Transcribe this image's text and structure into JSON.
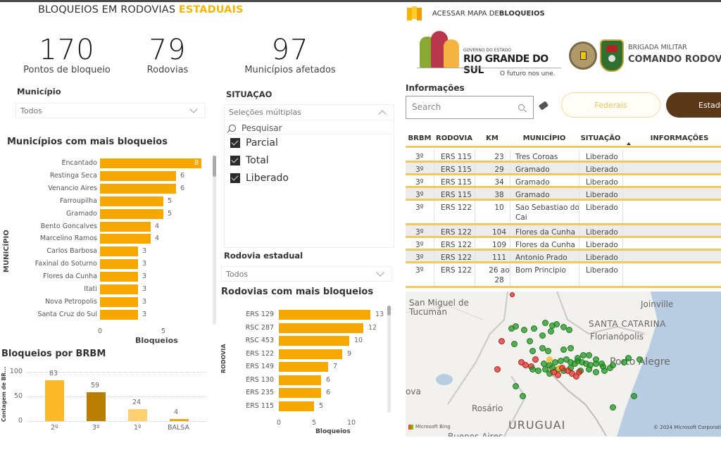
{
  "header": {
    "title_prefix": "BLOQUEIOS EM RODOVIAS ",
    "title_highlight": "ESTADUAIS"
  },
  "kpis": [
    {
      "value": "170",
      "label": "Pontos de bloqueio"
    },
    {
      "value": "79",
      "label": "Rodovias"
    },
    {
      "value": "97",
      "label": "Municípios afetados"
    }
  ],
  "filters": {
    "municipio": {
      "title": "Município",
      "value": "Todos"
    },
    "situacao": {
      "title": "SITUAÇAO",
      "value": "Seleções múltiplas",
      "search_placeholder": "Pesquisar",
      "options": [
        {
          "label": "Parcial",
          "checked": true
        },
        {
          "label": "Total",
          "checked": true
        },
        {
          "label": "Liberado",
          "checked": true
        }
      ]
    },
    "rodovia": {
      "title": "Rodovia estadual",
      "value": "Todos"
    }
  },
  "chart_data": [
    {
      "type": "bar",
      "orientation": "horizontal",
      "title": "Municípios com mais bloqueios",
      "ylabel": "MUNICÍPIO",
      "xlabel": "Bloqueios",
      "categories": [
        "Encantado",
        "Restinga Seca",
        "Venancio Aires",
        "Farroupilha",
        "Gramado",
        "Bento Goncalves",
        "Marcelino Ramos",
        "Carlos Barbosa",
        "Faxinal do Soturno",
        "Flores da Cunha",
        "Itati",
        "Nova Petropolis",
        "Santa Cruz do Sul"
      ],
      "values": [
        8,
        6,
        6,
        5,
        5,
        4,
        4,
        3,
        3,
        3,
        3,
        3,
        3
      ],
      "xticks": [
        "0",
        "5"
      ],
      "xlim": [
        0,
        8
      ],
      "color": "#f7a800"
    },
    {
      "type": "bar",
      "orientation": "vertical",
      "title": "Bloqueios por BRBM",
      "ylabel": "Contagem de BR...",
      "xlabel": "",
      "categories": [
        "2º",
        "3º",
        "1º",
        "BALSA"
      ],
      "values": [
        83,
        59,
        24,
        4
      ],
      "colors": [
        "#fbb827",
        "#b97f05",
        "#fcd070",
        "#e8a810"
      ],
      "yticks": [
        "0",
        "50",
        "100"
      ],
      "ylim": [
        0,
        100
      ],
      "grid": true
    },
    {
      "type": "bar",
      "orientation": "horizontal",
      "title": "Rodovias com mais bloqueios",
      "ylabel": "RODOVIA",
      "xlabel": "Bloqueios",
      "categories": [
        "ERS 129",
        "RSC 287",
        "RSC 453",
        "ERS 122",
        "ERS 149",
        "ERS 130",
        "ERS 235",
        "ERS 115"
      ],
      "values": [
        13,
        12,
        10,
        9,
        7,
        6,
        6,
        5
      ],
      "xticks": [
        "0",
        "5",
        "10"
      ],
      "xlim": [
        0,
        13
      ],
      "color": "#f7a800"
    }
  ],
  "right": {
    "map_link_prefix": "ACESSAR MAPA DE ",
    "map_link_bold": "BLOQUEIOS",
    "logo_gov": {
      "line1": "GOVERNO DO ESTADO",
      "line2": "RIO GRANDE DO SUL",
      "tagline": "O futuro nos une."
    },
    "logo_bm": {
      "line1": "BRIGADA MILITAR",
      "line2": "COMANDO RODOVI"
    },
    "info_title": "Informações",
    "search_placeholder": "Search",
    "btn_federais": "Federais",
    "btn_estaduais": "Estadu",
    "table": {
      "columns": [
        "BRBM",
        "RODOVIA",
        "KM",
        "MUNICÍPIO",
        "SITUAÇÃO",
        "INFORMAÇÕES"
      ],
      "rows": [
        [
          "3º",
          "ERS 115",
          "23",
          "Tres Coroas",
          "Liberado",
          ""
        ],
        [
          "3º",
          "ERS 115",
          "29",
          "Gramado",
          "Liberado",
          ""
        ],
        [
          "3º",
          "ERS 115",
          "34",
          "Gramado",
          "Liberado",
          ""
        ],
        [
          "3º",
          "ERS 115",
          "38",
          "Gramado",
          "Liberado",
          ""
        ],
        [
          "3º",
          "ERS 122",
          "10",
          "Sao Sebastiao do Cai",
          "Liberado",
          ""
        ],
        [
          "3º",
          "ERS 122",
          "104",
          "Flores da Cunha",
          "Liberado",
          ""
        ],
        [
          "3º",
          "ERS 122",
          "109",
          "Flores da Cunha",
          "Liberado",
          ""
        ],
        [
          "3º",
          "ERS 122",
          "111",
          "Antonio Prado",
          "Liberado",
          ""
        ],
        [
          "3º",
          "ERS 122",
          "26 ao 28",
          "Bom Principio",
          "Liberado",
          ""
        ]
      ]
    },
    "map": {
      "labels": [
        "San Miguel de Tucumán",
        "Joinville",
        "SANTA CATARINA",
        "Florianópolis",
        "Porto Alegre",
        "Rosário",
        "URUGUAI",
        "Buenos Aires",
        "ova"
      ],
      "attribution_left": "Microsoft Bing",
      "attribution_right": "© 2024 Microsoft Corporati"
    }
  },
  "colors": {
    "accent": "#f7a800",
    "highlight": "#f2b705",
    "dark_brown": "#5a3818",
    "table_border": "#f0c860",
    "status_green": "#229622",
    "status_red": "#dc3228"
  }
}
